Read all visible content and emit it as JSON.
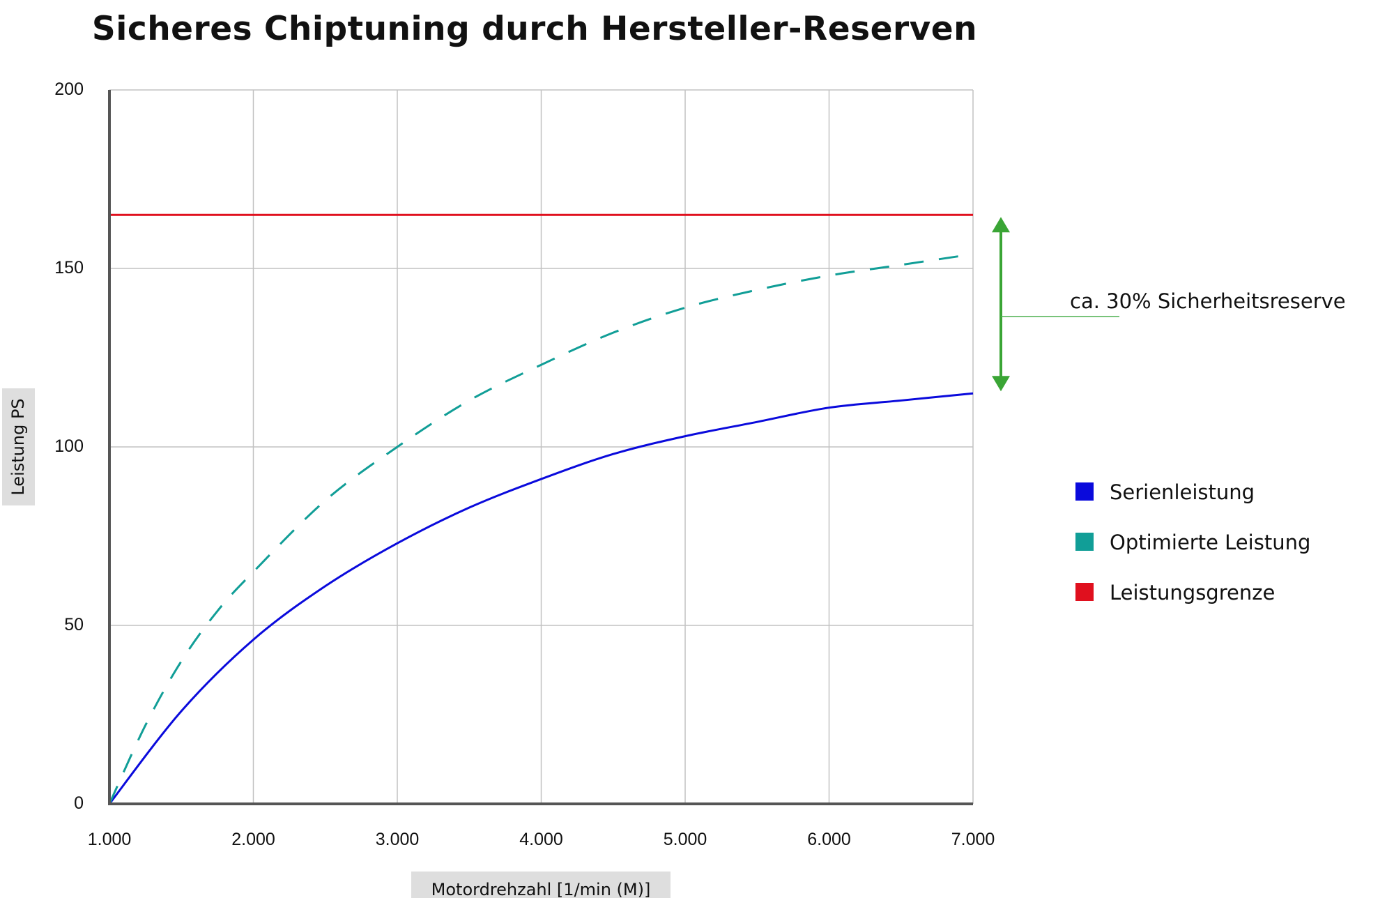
{
  "chart_data": {
    "type": "line",
    "title": "Sicheres Chiptuning durch Hersteller-Reserven",
    "xlabel": "Motordrehzahl [1/min (M)]",
    "ylabel": "Leistung PS",
    "xlim": [
      1000,
      7000
    ],
    "ylim": [
      0,
      200
    ],
    "x_ticks": [
      1000,
      2000,
      3000,
      4000,
      5000,
      6000,
      7000
    ],
    "x_tick_labels": [
      "1.000",
      "2.000",
      "3.000",
      "4.000",
      "5.000",
      "6.000",
      "7.000"
    ],
    "y_ticks": [
      0,
      50,
      100,
      150,
      200
    ],
    "y_tick_labels": [
      "0",
      "50",
      "100",
      "150",
      "200"
    ],
    "grid": true,
    "legend_position": "right",
    "series": [
      {
        "name": "Serienleistung",
        "color": "#0a0adc",
        "style": "solid",
        "x": [
          1000,
          1500,
          2000,
          2500,
          3000,
          3500,
          4000,
          4500,
          5000,
          5500,
          6000,
          6500,
          7000
        ],
        "y": [
          0,
          26,
          46,
          61,
          73,
          83,
          91,
          98,
          103,
          107,
          111,
          113,
          115
        ]
      },
      {
        "name": "Optimierte Leistung",
        "color": "#119e97",
        "style": "dashed",
        "x": [
          1000,
          1250,
          1500,
          1750,
          2000,
          2500,
          3000,
          3500,
          4000,
          4500,
          5000,
          5500,
          6000,
          6500,
          7000
        ],
        "y": [
          0,
          22,
          40,
          54,
          65,
          85,
          100,
          113,
          123,
          132,
          139,
          144,
          148,
          151,
          154
        ]
      },
      {
        "name": "Leistungsgrenze",
        "color": "#e0101e",
        "style": "solid",
        "x": [
          1000,
          7000
        ],
        "y": [
          165,
          165
        ]
      }
    ],
    "annotation": {
      "text": "ca. 30% Sicherheitsreserve",
      "from_y": 115,
      "to_y": 165,
      "color": "#3aa535"
    }
  }
}
